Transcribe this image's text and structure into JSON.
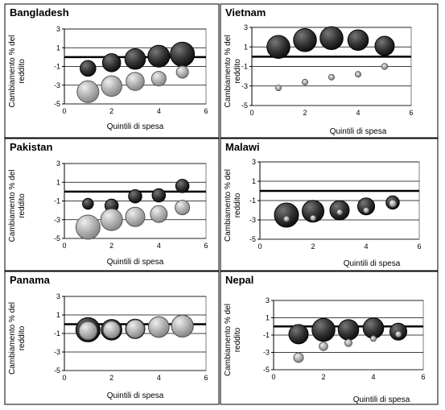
{
  "chart_data": [
    {
      "type": "scatter",
      "title": "Bangladesh",
      "xlabel": "Quintili di spesa",
      "ylabel_line1": "Cambiamento % del",
      "ylabel_line2": "reddito",
      "xlim": [
        0,
        6
      ],
      "ylim": [
        -5,
        3
      ],
      "xticks": [
        0,
        2,
        4,
        6
      ],
      "yticks": [
        3,
        1,
        -1,
        -3,
        -5
      ],
      "series": [
        {
          "style": "dark",
          "points": [
            {
              "x": 1,
              "y": -1.2,
              "size": 0.65
            },
            {
              "x": 2,
              "y": -0.6,
              "size": 0.75
            },
            {
              "x": 3,
              "y": -0.2,
              "size": 0.85
            },
            {
              "x": 4,
              "y": 0.1,
              "size": 0.9
            },
            {
              "x": 5,
              "y": 0.3,
              "size": 1.0
            }
          ]
        },
        {
          "style": "light",
          "points": [
            {
              "x": 1,
              "y": -3.7,
              "size": 0.9
            },
            {
              "x": 2,
              "y": -3.1,
              "size": 0.85
            },
            {
              "x": 3,
              "y": -2.6,
              "size": 0.75
            },
            {
              "x": 4,
              "y": -2.3,
              "size": 0.6
            },
            {
              "x": 5,
              "y": -1.6,
              "size": 0.5
            }
          ]
        }
      ]
    },
    {
      "type": "scatter",
      "title": "Vietnam",
      "xlabel": "Quintili di spesa",
      "ylabel_line1": "Cambiamento % del",
      "ylabel_line2": "reddito",
      "xlim": [
        0,
        6
      ],
      "ylim": [
        -5,
        3
      ],
      "xticks": [
        0,
        2,
        4,
        6
      ],
      "yticks": [
        3,
        1,
        -1,
        -3,
        -5
      ],
      "series": [
        {
          "style": "dark",
          "points": [
            {
              "x": 1,
              "y": 1.0,
              "size": 0.95
            },
            {
              "x": 2,
              "y": 1.7,
              "size": 0.95
            },
            {
              "x": 3,
              "y": 1.9,
              "size": 0.95
            },
            {
              "x": 4,
              "y": 1.7,
              "size": 0.85
            },
            {
              "x": 5,
              "y": 1.1,
              "size": 0.8
            }
          ]
        },
        {
          "style": "light",
          "points": [
            {
              "x": 1,
              "y": -3.2,
              "size": 0.18
            },
            {
              "x": 2,
              "y": -2.6,
              "size": 0.18
            },
            {
              "x": 3,
              "y": -2.1,
              "size": 0.18
            },
            {
              "x": 4,
              "y": -1.8,
              "size": 0.2
            },
            {
              "x": 5,
              "y": -1.0,
              "size": 0.25
            }
          ]
        }
      ]
    },
    {
      "type": "scatter",
      "title": "Pakistan",
      "xlabel": "Quintili di spesa",
      "ylabel_line1": "Cambiamento % del",
      "ylabel_line2": "reddito",
      "xlim": [
        0,
        6
      ],
      "ylim": [
        -5,
        3
      ],
      "xticks": [
        0,
        2,
        4,
        6
      ],
      "yticks": [
        3,
        1,
        -1,
        -3,
        -5
      ],
      "series": [
        {
          "style": "dark",
          "points": [
            {
              "x": 1,
              "y": -1.3,
              "size": 0.45
            },
            {
              "x": 2,
              "y": -1.5,
              "size": 0.55
            },
            {
              "x": 3,
              "y": -0.5,
              "size": 0.55
            },
            {
              "x": 4,
              "y": -0.4,
              "size": 0.55
            },
            {
              "x": 5,
              "y": 0.6,
              "size": 0.55
            }
          ]
        },
        {
          "style": "light",
          "points": [
            {
              "x": 1,
              "y": -3.8,
              "size": 1.0
            },
            {
              "x": 2,
              "y": -3.0,
              "size": 0.9
            },
            {
              "x": 3,
              "y": -2.7,
              "size": 0.8
            },
            {
              "x": 4,
              "y": -2.4,
              "size": 0.7
            },
            {
              "x": 5,
              "y": -1.7,
              "size": 0.6
            }
          ]
        }
      ]
    },
    {
      "type": "scatter",
      "title": "Malawi",
      "xlabel": "Quintili di spesa",
      "ylabel_line1": "Cambiamento % del",
      "ylabel_line2": "reddito",
      "xlim": [
        0,
        6
      ],
      "ylim": [
        -5,
        3
      ],
      "xticks": [
        0,
        2,
        4,
        6
      ],
      "yticks": [
        3,
        1,
        -1,
        -3,
        -5
      ],
      "series": [
        {
          "style": "dark",
          "points": [
            {
              "x": 1,
              "y": -2.5,
              "size": 1.0
            },
            {
              "x": 2,
              "y": -2.1,
              "size": 0.9
            },
            {
              "x": 3,
              "y": -2.0,
              "size": 0.8
            },
            {
              "x": 4,
              "y": -1.6,
              "size": 0.7
            },
            {
              "x": 5,
              "y": -1.2,
              "size": 0.55
            }
          ]
        },
        {
          "style": "light",
          "points": [
            {
              "x": 1,
              "y": -2.9,
              "size": 0.18
            },
            {
              "x": 2,
              "y": -2.8,
              "size": 0.18
            },
            {
              "x": 3,
              "y": -2.2,
              "size": 0.18
            },
            {
              "x": 4,
              "y": -2.0,
              "size": 0.18
            },
            {
              "x": 5,
              "y": -1.3,
              "size": 0.3
            }
          ]
        }
      ]
    },
    {
      "type": "scatter",
      "title": "Panama",
      "xlabel": "Quintili di spesa",
      "ylabel_line1": "Cambiamento % del",
      "ylabel_line2": "reddito",
      "xlim": [
        0,
        6
      ],
      "ylim": [
        -5,
        3
      ],
      "xticks": [
        0,
        2,
        4,
        6
      ],
      "yticks": [
        3,
        1,
        -1,
        -3,
        -5
      ],
      "series": [
        {
          "style": "dark",
          "points": [
            {
              "x": 1,
              "y": -0.6,
              "size": 1.0
            },
            {
              "x": 2,
              "y": -0.6,
              "size": 0.85
            },
            {
              "x": 3,
              "y": -0.5,
              "size": 0.8
            },
            {
              "x": 4,
              "y": -0.3,
              "size": 0.85
            },
            {
              "x": 5,
              "y": -0.2,
              "size": 0.9
            }
          ]
        },
        {
          "style": "light",
          "points": [
            {
              "x": 1,
              "y": -0.7,
              "size": 0.75
            },
            {
              "x": 2,
              "y": -0.6,
              "size": 0.7
            },
            {
              "x": 3,
              "y": -0.5,
              "size": 0.75
            },
            {
              "x": 4,
              "y": -0.3,
              "size": 0.85
            },
            {
              "x": 5,
              "y": -0.2,
              "size": 0.9
            }
          ]
        }
      ]
    },
    {
      "type": "scatter",
      "title": "Nepal",
      "xlabel": "Quintili di spesa",
      "ylabel_line1": "Cambiamento % del",
      "ylabel_line2": "reddito",
      "xlim": [
        0,
        6
      ],
      "ylim": [
        -5,
        3
      ],
      "xticks": [
        0,
        2,
        4,
        6
      ],
      "yticks": [
        3,
        1,
        -1,
        -3,
        -5
      ],
      "series": [
        {
          "style": "dark",
          "points": [
            {
              "x": 1,
              "y": -0.9,
              "size": 0.8
            },
            {
              "x": 2,
              "y": -0.4,
              "size": 0.95
            },
            {
              "x": 3,
              "y": -0.4,
              "size": 0.85
            },
            {
              "x": 4,
              "y": -0.2,
              "size": 0.85
            },
            {
              "x": 5,
              "y": -0.6,
              "size": 0.7
            }
          ]
        },
        {
          "style": "light",
          "points": [
            {
              "x": 1,
              "y": -3.6,
              "size": 0.4
            },
            {
              "x": 2,
              "y": -2.3,
              "size": 0.35
            },
            {
              "x": 3,
              "y": -1.9,
              "size": 0.3
            },
            {
              "x": 4,
              "y": -1.4,
              "size": 0.18
            },
            {
              "x": 5,
              "y": -0.9,
              "size": 0.25
            }
          ]
        }
      ]
    }
  ],
  "colors": {
    "dark_fill": "#333333",
    "dark_stroke": "#000000",
    "light_fill": "#b0b0b0",
    "light_stroke": "#555555",
    "zero_line": "#000000",
    "grid": "#000000"
  }
}
